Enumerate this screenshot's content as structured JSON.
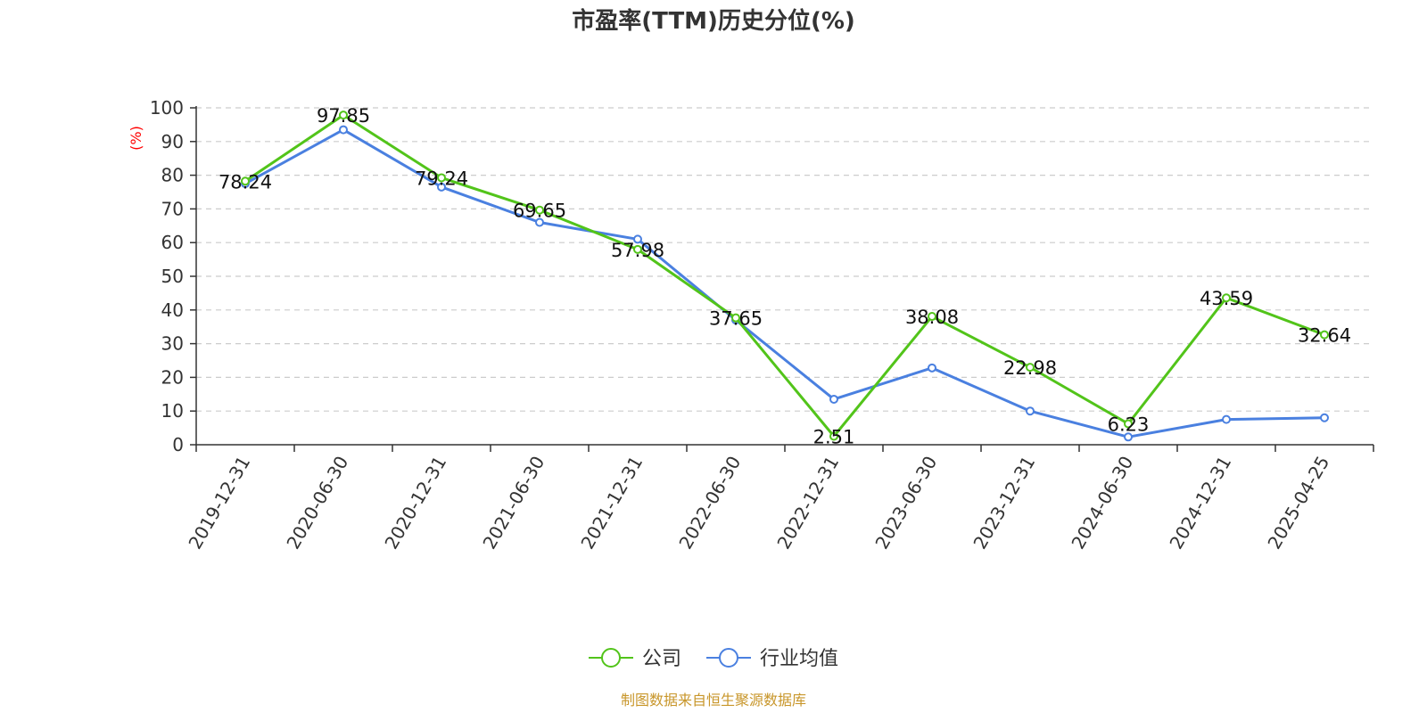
{
  "chart_data": {
    "type": "line",
    "title": "市盈率(TTM)历史分位(%)",
    "ylabel": "(%)",
    "ylim": [
      0,
      100
    ],
    "yticks": [
      0,
      10,
      20,
      30,
      40,
      50,
      60,
      70,
      80,
      90,
      100
    ],
    "grid": true,
    "legend_position": "bottom",
    "categories": [
      "2019-12-31",
      "2020-06-30",
      "2020-12-31",
      "2021-06-30",
      "2021-12-31",
      "2022-06-30",
      "2022-12-31",
      "2023-06-30",
      "2023-12-31",
      "2024-06-30",
      "2024-12-31",
      "2025-04-25"
    ],
    "series": [
      {
        "name": "公司",
        "color": "#52c41a",
        "values": [
          78.24,
          97.85,
          79.24,
          69.65,
          57.98,
          37.65,
          2.51,
          38.08,
          22.98,
          6.23,
          43.59,
          32.64
        ],
        "labels": [
          "78.24",
          "97.85",
          "79.24",
          "69.65",
          "57.98",
          "37.65",
          "2.51",
          "38.08",
          "22.98",
          "6.23",
          "43.59",
          "32.64"
        ]
      },
      {
        "name": "行业均值",
        "color": "#4a80e0",
        "values": [
          77.5,
          93.5,
          76.5,
          66,
          61,
          37,
          13.5,
          22.8,
          10,
          2.3,
          7.5,
          8
        ]
      }
    ]
  },
  "footer": {
    "source": "制图数据来自恒生聚源数据库"
  }
}
